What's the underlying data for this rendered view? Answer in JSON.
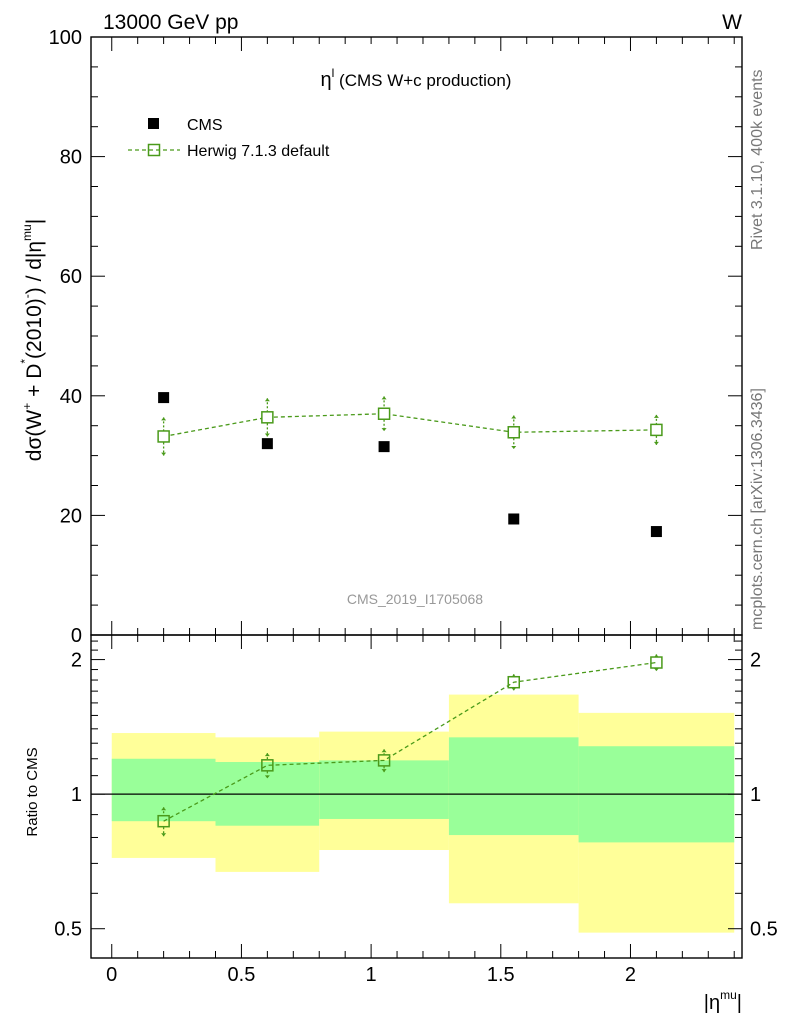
{
  "header": {
    "energy_label": "13000 GeV pp",
    "process_label": "W",
    "analysis_id": "CMS_2019_I1705068",
    "side_label_top": "Rivet 3.1.10,  400k events",
    "side_label_bottom": "mcplots.cern.ch [arXiv:1306.3436]"
  },
  "chart_data": [
    {
      "type": "scatter",
      "title": "η",
      "title_sup": "l",
      "title_suffix": " (CMS W+c production)",
      "ylabel": "dσ(W",
      "ylabel_parts": [
        "dσ(W",
        "+",
        " + D",
        "*",
        "(2010)",
        "-",
        ") / d|η",
        "mu",
        "|"
      ],
      "xlim": [
        -0.08,
        2.43
      ],
      "ylim": [
        0,
        100
      ],
      "yticks": [
        0,
        20,
        40,
        60,
        80,
        100
      ],
      "x": [
        0.2,
        0.6,
        1.05,
        1.55,
        2.1
      ],
      "series": [
        {
          "name": "CMS",
          "color": "#000000",
          "marker": "filled-square",
          "values": [
            39.7,
            32.0,
            31.5,
            19.4,
            17.3
          ]
        },
        {
          "name": "Herwig 7.1.3 default",
          "color": "#4a9a1a",
          "marker": "open-square",
          "line": "dashed",
          "values": [
            33.2,
            36.4,
            37.0,
            33.9,
            34.3
          ],
          "err_up": [
            3.2,
            3.2,
            2.9,
            2.8,
            2.5
          ],
          "err_down": [
            3.2,
            3.2,
            2.9,
            2.8,
            2.5
          ]
        }
      ],
      "legend_position": "top-left"
    },
    {
      "type": "scatter",
      "ylabel": "Ratio to CMS",
      "xlabel": "|η",
      "xlabel_sup": "mu",
      "xlabel_suffix": "|",
      "xlim": [
        -0.08,
        2.43
      ],
      "ylim": [
        0.43,
        2.27
      ],
      "yticks": [
        0.5,
        1,
        2
      ],
      "xticks": [
        0,
        0.5,
        1,
        1.5,
        2
      ],
      "bands": [
        {
          "x0": 0.0,
          "x1": 0.4,
          "green": [
            0.87,
            1.2
          ],
          "yellow": [
            0.72,
            1.37
          ]
        },
        {
          "x0": 0.4,
          "x1": 0.8,
          "green": [
            0.85,
            1.18
          ],
          "yellow": [
            0.67,
            1.34
          ]
        },
        {
          "x0": 0.8,
          "x1": 1.3,
          "green": [
            0.88,
            1.19
          ],
          "yellow": [
            0.75,
            1.38
          ]
        },
        {
          "x0": 1.3,
          "x1": 1.8,
          "green": [
            0.81,
            1.34
          ],
          "yellow": [
            0.57,
            1.67
          ]
        },
        {
          "x0": 1.8,
          "x1": 2.4,
          "green": [
            0.78,
            1.28
          ],
          "yellow": [
            0.49,
            1.52
          ]
        }
      ],
      "band_colors": {
        "green": "#99ff99",
        "yellow": "#ffff99"
      },
      "x": [
        0.2,
        0.6,
        1.05,
        1.55,
        2.1
      ],
      "series": [
        {
          "name": "Herwig 7.1.3 default",
          "color": "#4a9a1a",
          "values": [
            0.87,
            1.16,
            1.19,
            1.78,
            1.97
          ],
          "err_up": [
            0.065,
            0.075,
            0.07,
            0.075,
            0.085
          ],
          "err_down": [
            0.065,
            0.075,
            0.07,
            0.075,
            0.085
          ]
        }
      ]
    }
  ]
}
